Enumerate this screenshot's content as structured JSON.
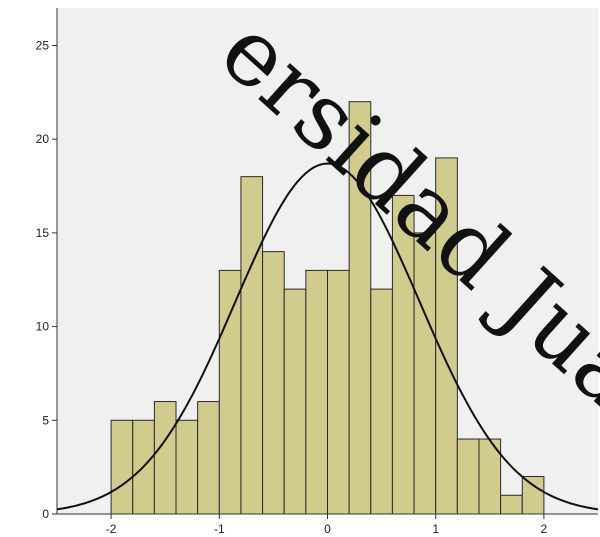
{
  "chart_data": {
    "type": "bar",
    "subtype": "histogram",
    "bin_width": 0.2,
    "x": [
      -1.9,
      -1.7,
      -1.5,
      -1.3,
      -1.1,
      -0.9,
      -0.7,
      -0.5,
      -0.3,
      -0.1,
      0.1,
      0.3,
      0.5,
      0.7,
      0.9,
      1.1,
      1.3,
      1.5,
      1.7,
      1.9
    ],
    "values": [
      5,
      5,
      6,
      5,
      6,
      13,
      18,
      14,
      12,
      13,
      13,
      22,
      12,
      17,
      15,
      19,
      4,
      4,
      1,
      2
    ],
    "xlim": [
      -2.5,
      2.5
    ],
    "ylim": [
      0,
      27
    ],
    "xticks": [
      -2,
      -1,
      0,
      1,
      2
    ],
    "xtick_labels": [
      "-2",
      "-1",
      "0",
      "1",
      "2"
    ],
    "yticks": [
      0,
      5,
      10,
      15,
      20,
      25
    ],
    "ytick_labels": [
      "0",
      "5",
      "10",
      "15",
      "20",
      "25"
    ],
    "title": "",
    "xlabel": "",
    "ylabel": "",
    "grid": false,
    "normal_curve": {
      "mean": 0.0,
      "peak": 18.7,
      "sd": 0.85
    },
    "colors": {
      "bar_fill": "#d2cb8e",
      "bar_stroke": "#2a2a2a",
      "plot_bg": "#f0f0f0",
      "curve": "#111111"
    }
  },
  "watermark": "ersidad Juárez"
}
